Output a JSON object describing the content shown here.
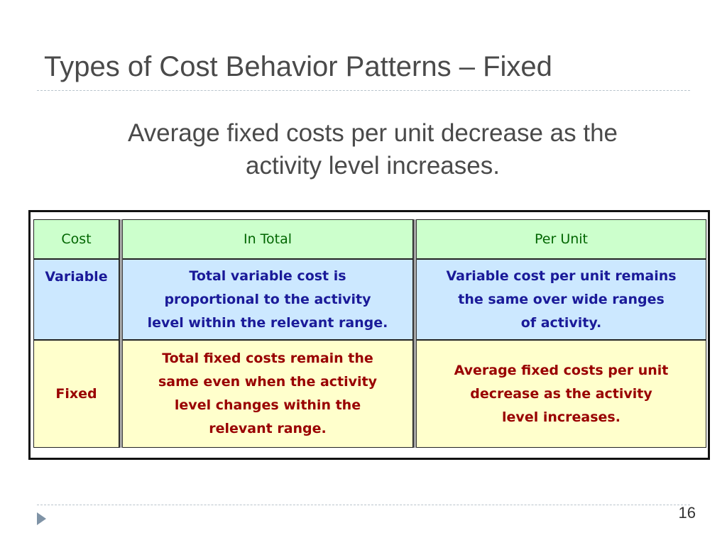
{
  "slide": {
    "title": "Types of Cost Behavior Patterns – Fixed",
    "subtitle_lines": [
      "Average fixed costs per unit decrease as the",
      "activity level increases."
    ],
    "page_number": "16",
    "bullet_icon": "triangle-bullet-icon"
  },
  "table": {
    "headers": {
      "cost": "Cost",
      "in_total": "In Total",
      "per_unit": "Per Unit"
    },
    "rows": [
      {
        "label": "Variable",
        "in_total_lines": [
          "Total variable cost is",
          "proportional to the activity",
          "level within the relevant range."
        ],
        "per_unit_lines": [
          "Variable cost per unit remains",
          "the same over wide ranges",
          "of activity."
        ]
      },
      {
        "label": "Fixed",
        "in_total_lines": [
          "Total fixed costs remain the",
          "same even when the activity",
          "level changes within the",
          "relevant range."
        ],
        "per_unit_lines": [
          "Average fixed costs per unit",
          "decrease as the activity",
          "level increases."
        ]
      }
    ]
  },
  "colors": {
    "header_bg": "#ccffcc",
    "header_text": "#006600",
    "variable_bg": "#cce8ff",
    "variable_text": "#1a1a99",
    "fixed_bg": "#ffffcc",
    "fixed_text": "#990000"
  }
}
